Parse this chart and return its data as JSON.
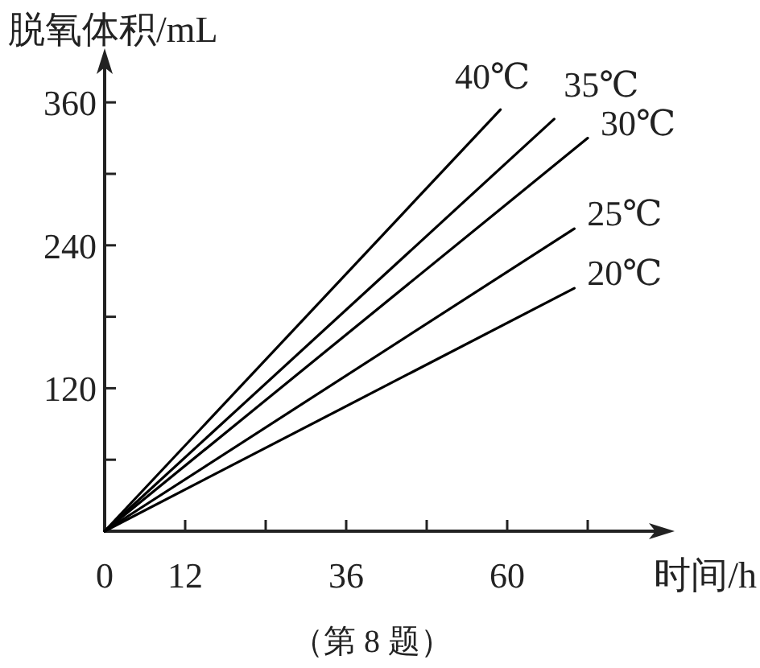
{
  "chart_data": {
    "type": "line",
    "xlabel": "时间/h",
    "ylabel": "脱氧体积/mL",
    "xlim": [
      0,
      84
    ],
    "ylim": [
      0,
      400
    ],
    "xticks": [
      0,
      12,
      {
        "value": 24,
        "label": null
      },
      36,
      {
        "value": 48,
        "label": null
      },
      60,
      {
        "value": 72,
        "label": null
      }
    ],
    "yticks": [
      {
        "value": 60,
        "label": null
      },
      120,
      {
        "value": 180,
        "label": null
      },
      240,
      {
        "value": 300,
        "label": null
      },
      360
    ],
    "series": [
      {
        "name": "40℃",
        "color": "#000000",
        "x": [
          0,
          59
        ],
        "values": [
          0,
          354
        ]
      },
      {
        "name": "35℃",
        "color": "#000000",
        "x": [
          0,
          67
        ],
        "values": [
          0,
          346
        ]
      },
      {
        "name": "30℃",
        "color": "#000000",
        "x": [
          0,
          72
        ],
        "values": [
          0,
          330
        ]
      },
      {
        "name": "25℃",
        "color": "#000000",
        "x": [
          0,
          70
        ],
        "values": [
          0,
          254
        ]
      },
      {
        "name": "20℃",
        "color": "#000000",
        "x": [
          0,
          70
        ],
        "values": [
          0,
          204
        ]
      }
    ],
    "marker": "none",
    "line_style": "solid",
    "grid": false,
    "legend": false,
    "annotations": [
      "（第 8 题）"
    ]
  }
}
